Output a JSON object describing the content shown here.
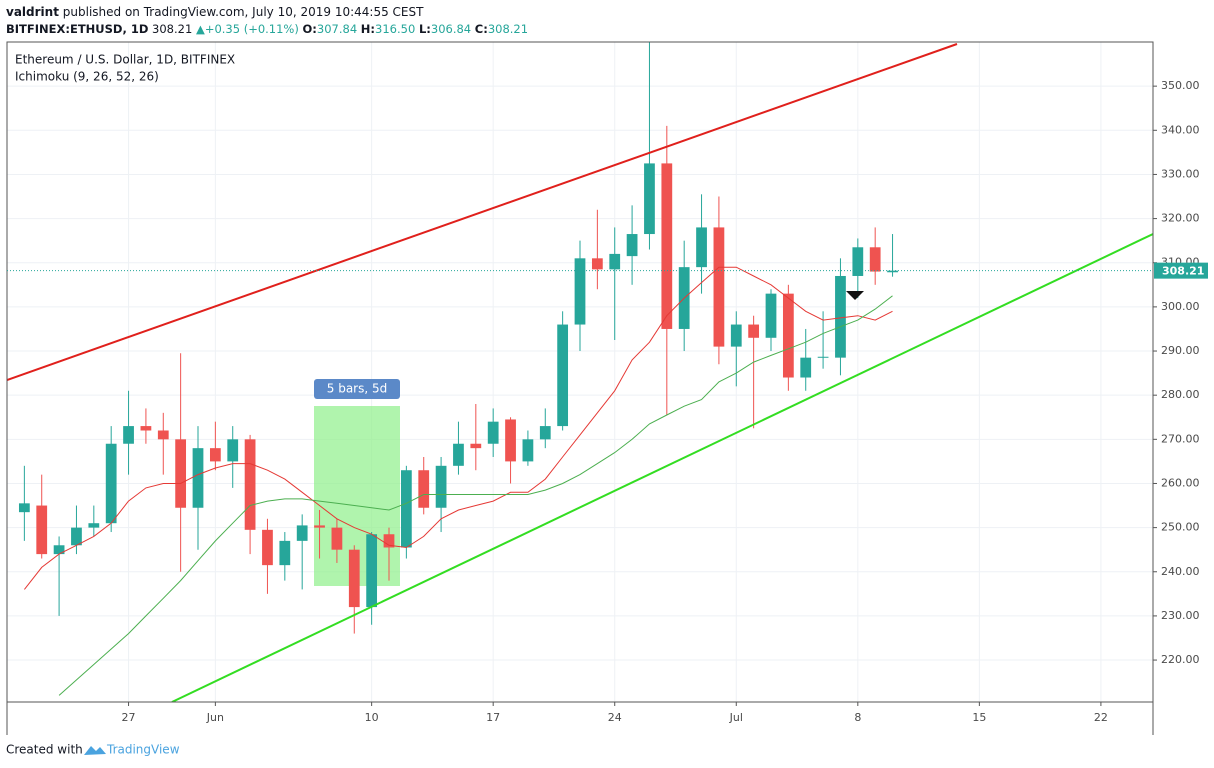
{
  "header": {
    "author": "valdrint",
    "published": "published on TradingView.com, July 10, 2019 10:44:55 CEST",
    "symbol": "BITFINEX:ETHUSD, 1D",
    "price": "308.21",
    "change": "+0.35 (+0.11%)",
    "ohlc": [
      {
        "label": "O:",
        "value": "307.84"
      },
      {
        "label": "H:",
        "value": "316.50"
      },
      {
        "label": "L:",
        "value": "306.84"
      },
      {
        "label": "C:",
        "value": "308.21"
      }
    ]
  },
  "chart_data": {
    "type": "candlestick",
    "title": "Ethereum / U.S. Dollar, 1D, BITFINEX",
    "indicator": "Ichimoku (9, 26, 52, 26)",
    "x": [
      "05-21",
      "05-22",
      "05-23",
      "05-24",
      "05-25",
      "05-26",
      "05-27",
      "05-28",
      "05-29",
      "05-30",
      "05-31",
      "06-01",
      "06-02",
      "06-03",
      "06-04",
      "06-05",
      "06-06",
      "06-07",
      "06-08",
      "06-09",
      "06-10",
      "06-11",
      "06-12",
      "06-13",
      "06-14",
      "06-15",
      "06-16",
      "06-17",
      "06-18",
      "06-19",
      "06-20",
      "06-21",
      "06-22",
      "06-23",
      "06-24",
      "06-25",
      "06-26",
      "06-27",
      "06-28",
      "06-29",
      "06-30",
      "07-01",
      "07-02",
      "07-03",
      "07-04",
      "07-05",
      "07-06",
      "07-07",
      "07-08",
      "07-09",
      "07-10"
    ],
    "open": [
      253.5,
      255,
      244,
      246,
      250,
      251,
      269,
      273,
      272,
      270,
      254.5,
      268,
      265,
      270,
      249.5,
      241.5,
      247,
      250.5,
      250,
      245,
      232,
      248.5,
      245.5,
      263,
      254.5,
      264,
      269,
      269,
      274.5,
      265,
      270,
      273,
      296,
      311,
      308.5,
      311.5,
      316.5,
      332.5,
      295,
      309,
      318,
      291,
      296,
      293,
      303,
      284,
      288.5,
      288.5,
      307,
      313.5,
      307.84
    ],
    "high": [
      264,
      262,
      248,
      255,
      255,
      273,
      281,
      277,
      276,
      289.5,
      273,
      274,
      273,
      271,
      252,
      249,
      253,
      254,
      252,
      246,
      249,
      250,
      264,
      266,
      266,
      274,
      278,
      277,
      275,
      272,
      277,
      299,
      315,
      322,
      318,
      323,
      361,
      341,
      315,
      325.5,
      325,
      299,
      298,
      304,
      305,
      295,
      299,
      311,
      315.5,
      318,
      316.5
    ],
    "low": [
      247,
      243,
      230,
      244,
      248,
      249,
      262,
      269,
      262,
      240,
      245,
      263,
      259,
      244,
      235,
      238,
      236,
      243,
      242,
      226,
      228,
      238,
      243,
      253,
      249,
      262,
      263,
      266,
      260,
      264,
      268,
      272,
      290,
      304,
      292.5,
      305,
      313,
      275.5,
      290,
      303,
      287,
      282,
      272.5,
      290,
      281,
      281,
      286,
      284.5,
      302,
      305,
      306.84
    ],
    "close": [
      255.5,
      244,
      246,
      250,
      251,
      269,
      273,
      272,
      270,
      254.5,
      268,
      265,
      270,
      249.5,
      241.5,
      247,
      250.5,
      250,
      245,
      232,
      248.5,
      245.5,
      263,
      254.5,
      264,
      269,
      268,
      274,
      265,
      270,
      273,
      296,
      311,
      308.5,
      312,
      316.5,
      332.5,
      295,
      309,
      318,
      291,
      296,
      293,
      303,
      284,
      288.5,
      288.7,
      307,
      313.5,
      308,
      308.21
    ],
    "up_color": "#26a69a",
    "down_color": "#ef5350",
    "lines": [
      {
        "color": "#e53935",
        "values": [
          236,
          241,
          244,
          246,
          248,
          251,
          256,
          259,
          260,
          260,
          262,
          263.5,
          264.5,
          264.5,
          263,
          261,
          258,
          255,
          252,
          250,
          248.5,
          246,
          245.5,
          248,
          252,
          254,
          255,
          256,
          258,
          258,
          261,
          266,
          271,
          276,
          281,
          288,
          292,
          298,
          302,
          305.5,
          309,
          309,
          307,
          305,
          302,
          299,
          297,
          297.5,
          298,
          297,
          299
        ]
      },
      {
        "color": "#4caf50",
        "values": [
          null,
          null,
          212,
          215.5,
          219,
          222.5,
          226,
          230,
          234,
          238,
          242.5,
          247,
          251,
          255,
          256,
          256.5,
          256.5,
          256,
          255.5,
          255,
          254.5,
          254,
          255.5,
          257.5,
          257.5,
          257.5,
          257.5,
          257.5,
          257.5,
          257.5,
          258.5,
          260,
          262,
          264.5,
          267,
          270,
          273.5,
          275.5,
          277.5,
          279,
          283,
          285,
          287.5,
          289,
          290.5,
          292,
          294,
          295.5,
          297,
          299.5,
          302.5
        ]
      }
    ],
    "last_price": 308.21,
    "measure_label": "5 bars, 5d",
    "xlim": [
      "05-20",
      "07-25"
    ],
    "xticks": [
      {
        "value": "05-27",
        "label": "27"
      },
      {
        "value": "06-01",
        "label": "Jun"
      },
      {
        "value": "06-10",
        "label": "10"
      },
      {
        "value": "06-17",
        "label": "17"
      },
      {
        "value": "06-24",
        "label": "24"
      },
      {
        "value": "07-01",
        "label": "Jul"
      },
      {
        "value": "07-08",
        "label": "8"
      },
      {
        "value": "07-15",
        "label": "15"
      },
      {
        "value": "07-22",
        "label": "22"
      }
    ],
    "ylim": [
      210.5,
      360
    ],
    "yticks": [
      {
        "value": 220,
        "label": "220.00"
      },
      {
        "value": 230,
        "label": "230.00"
      },
      {
        "value": 240,
        "label": "240.00"
      },
      {
        "value": 250,
        "label": "250.00"
      },
      {
        "value": 260,
        "label": "260.00"
      },
      {
        "value": 270,
        "label": "270.00"
      },
      {
        "value": 280,
        "label": "280.00"
      },
      {
        "value": 290,
        "label": "290.00"
      },
      {
        "value": 300,
        "label": "300.00"
      },
      {
        "value": 310,
        "label": "310.00"
      },
      {
        "value": 320,
        "label": "320.00"
      },
      {
        "value": 330,
        "label": "330.00"
      },
      {
        "value": 340,
        "label": "340.00"
      },
      {
        "value": 350,
        "label": "350.00"
      }
    ],
    "grid": true
  },
  "footer": {
    "created": "Created with",
    "brand": "TradingView"
  }
}
